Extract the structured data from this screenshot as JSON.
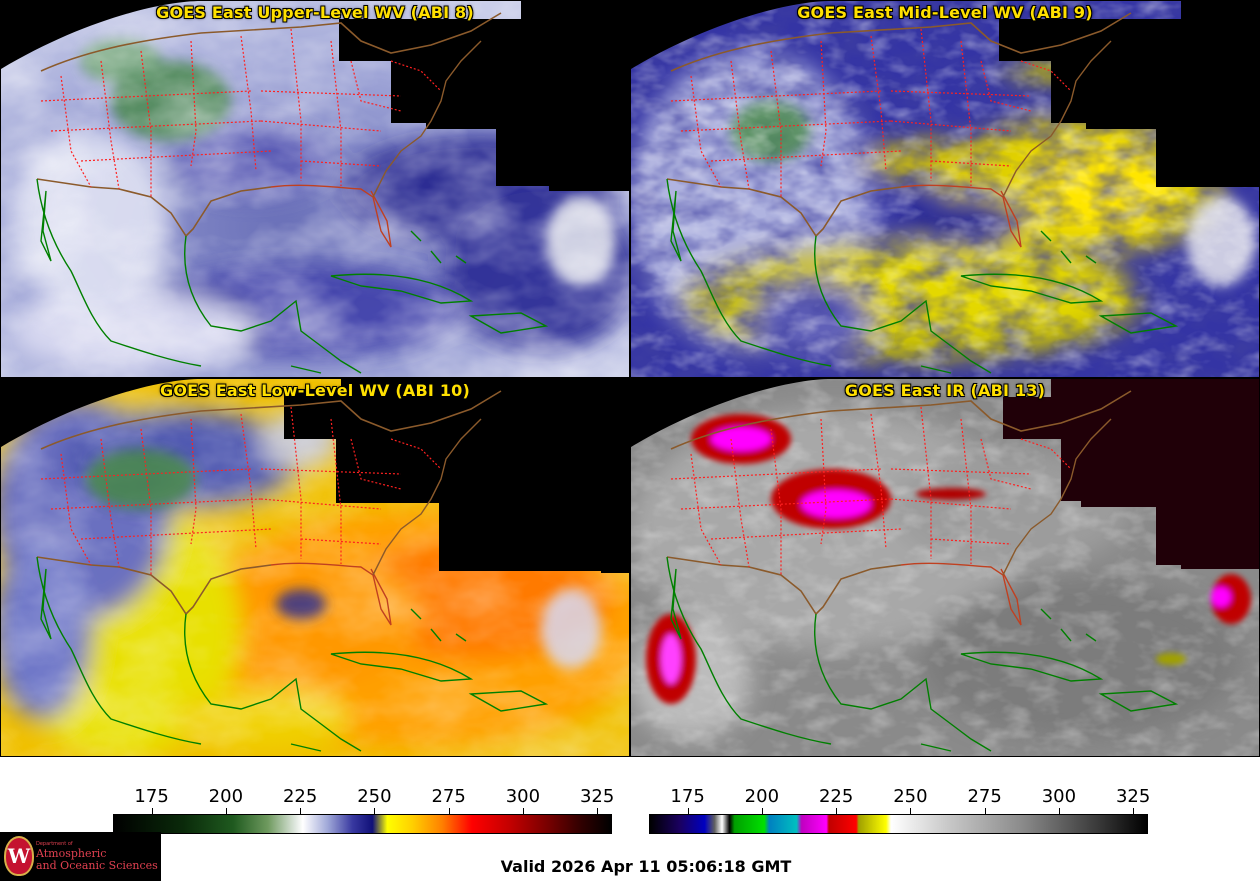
{
  "panels": [
    {
      "title": "GOES East Upper-Level WV (ABI 8)",
      "product": "upper-level-water-vapor"
    },
    {
      "title": "GOES East Mid-Level WV (ABI 9)",
      "product": "mid-level-water-vapor"
    },
    {
      "title": "GOES East Low-Level WV (ABI 10)",
      "product": "low-level-water-vapor"
    },
    {
      "title": "GOES East IR (ABI 13)",
      "product": "infrared"
    }
  ],
  "colorbars": {
    "left": {
      "ticks": [
        "175",
        "200",
        "225",
        "250",
        "275",
        "300",
        "325"
      ],
      "range": [
        162,
        330
      ]
    },
    "right": {
      "ticks": [
        "175",
        "200",
        "225",
        "250",
        "275",
        "300",
        "325"
      ],
      "range": [
        162,
        330
      ]
    }
  },
  "colors": {
    "title_text": "#ffe000",
    "state_borders": "#ff2020",
    "country_borders": "#8b5a2b",
    "coastlines": "#008000",
    "no_data": "#000000"
  },
  "logo": {
    "dept": "Department of",
    "line1": "Atmospheric",
    "line2": "and Oceanic Sciences"
  },
  "valid_time": "Valid 2026 Apr 11 05:06:18 GMT"
}
